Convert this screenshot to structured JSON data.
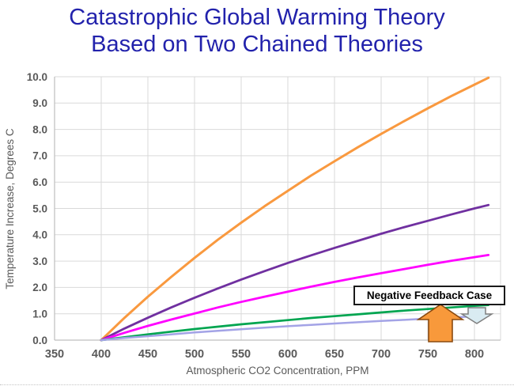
{
  "title": {
    "line1": "Catastrophic Global Warming Theory",
    "line2": "Based on Two Chained Theories",
    "color": "#2222AC"
  },
  "chart_data": {
    "type": "line",
    "title": "",
    "xlabel": "Atmospheric CO2 Concentration, PPM",
    "ylabel": "Temperature Increase, Degrees C",
    "xlim": [
      350,
      825
    ],
    "ylim": [
      0,
      10
    ],
    "x_ticks": [
      350,
      400,
      450,
      500,
      550,
      600,
      650,
      700,
      750,
      800
    ],
    "y_ticks": [
      0,
      1,
      2,
      3,
      4,
      5,
      6,
      7,
      8,
      9,
      10
    ],
    "grid": true,
    "legend_position": "none",
    "axis_text_color": "#595959",
    "gridline_color": "#D9D9D9",
    "axis_line_color": "#BFBFBF",
    "x": [
      400,
      425,
      450,
      475,
      500,
      525,
      550,
      575,
      600,
      625,
      650,
      675,
      700,
      725,
      750,
      775,
      800,
      815
    ],
    "series": [
      {
        "name": "orange-curve-highest-sensitivity",
        "color": "#F9993F",
        "width": 3,
        "values": [
          0,
          0.85,
          1.65,
          2.4,
          3.12,
          3.81,
          4.46,
          5.08,
          5.67,
          6.25,
          6.79,
          7.32,
          7.83,
          8.32,
          8.8,
          9.26,
          9.7,
          9.96
        ]
      },
      {
        "name": "purple-curve",
        "color": "#7030A0",
        "width": 2.8,
        "values": [
          0,
          0.44,
          0.85,
          1.24,
          1.61,
          1.96,
          2.3,
          2.62,
          2.93,
          3.22,
          3.5,
          3.77,
          4.04,
          4.29,
          4.53,
          4.77,
          5.0,
          5.13
        ]
      },
      {
        "name": "magenta-curve",
        "color": "#FF00FF",
        "width": 2.8,
        "values": [
          0,
          0.28,
          0.54,
          0.78,
          1.01,
          1.24,
          1.45,
          1.65,
          1.84,
          2.03,
          2.21,
          2.38,
          2.54,
          2.7,
          2.86,
          3.01,
          3.15,
          3.23
        ]
      },
      {
        "name": "green-curve-negative-feedback",
        "color": "#00A550",
        "width": 2.7,
        "values": [
          0,
          0.11,
          0.22,
          0.32,
          0.42,
          0.51,
          0.6,
          0.68,
          0.76,
          0.84,
          0.91,
          0.98,
          1.05,
          1.12,
          1.18,
          1.24,
          1.3,
          1.33
        ]
      },
      {
        "name": "lavender-curve-negative-feedback",
        "color": "#A3A3E6",
        "width": 2.5,
        "values": [
          0,
          0.08,
          0.15,
          0.22,
          0.29,
          0.35,
          0.41,
          0.47,
          0.53,
          0.58,
          0.63,
          0.68,
          0.73,
          0.77,
          0.82,
          0.86,
          0.9,
          0.92
        ]
      }
    ]
  },
  "annotation": {
    "label": "Negative Feedback Case",
    "up_arrow_fill": "#F8993B",
    "up_arrow_stroke": "#8A4A10",
    "down_arrow_fill": "#D9EBF2",
    "down_arrow_stroke": "#7F7F7F"
  }
}
